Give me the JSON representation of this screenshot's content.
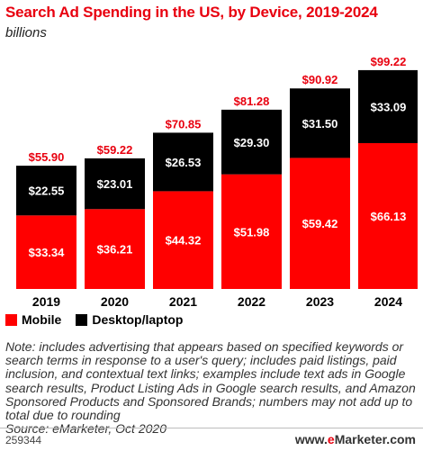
{
  "title": "Search Ad Spending in the US, by Device, 2019-2024",
  "subtitle": "billions",
  "chart_data": {
    "type": "bar",
    "stacked": true,
    "categories": [
      "2019",
      "2020",
      "2021",
      "2022",
      "2023",
      "2024"
    ],
    "series": [
      {
        "name": "Mobile",
        "color": "#ff0000",
        "values": [
          33.34,
          36.21,
          44.32,
          51.98,
          59.42,
          66.13
        ],
        "labels": [
          "$33.34",
          "$36.21",
          "$44.32",
          "$51.98",
          "$59.42",
          "$66.13"
        ]
      },
      {
        "name": "Desktop/laptop",
        "color": "#000000",
        "values": [
          22.55,
          23.01,
          26.53,
          29.3,
          31.5,
          33.09
        ],
        "labels": [
          "$22.55",
          "$23.01",
          "$26.53",
          "$29.30",
          "$31.50",
          "$33.09"
        ]
      }
    ],
    "totals": [
      55.9,
      59.22,
      70.85,
      81.28,
      90.92,
      99.22
    ],
    "total_labels": [
      "$55.90",
      "$59.22",
      "$70.85",
      "$81.28",
      "$90.92",
      "$99.22"
    ],
    "ylim": [
      0,
      100
    ],
    "grid": false,
    "legend_position": "bottom-left"
  },
  "note": "Note: includes advertising that appears based on specified keywords or search terms in response to a user's query; includes paid listings, paid inclusion, and contextual text links; examples include text ads in Google search results, Product Listing Ads in Google search results, and Amazon Sponsored Products and Sponsored Brands; numbers may not add up to total due to rounding",
  "source": "Source: eMarketer, Oct 2020",
  "footer": {
    "id": "259344",
    "brand_prefix": "www.",
    "brand_accent": "e",
    "brand_suffix": "Marketer.com"
  }
}
